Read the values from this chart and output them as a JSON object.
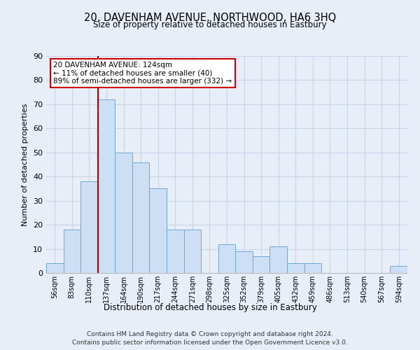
{
  "title": "20, DAVENHAM AVENUE, NORTHWOOD, HA6 3HQ",
  "subtitle": "Size of property relative to detached houses in Eastbury",
  "xlabel": "Distribution of detached houses by size in Eastbury",
  "ylabel": "Number of detached properties",
  "bar_labels": [
    "56sqm",
    "83sqm",
    "110sqm",
    "137sqm",
    "164sqm",
    "190sqm",
    "217sqm",
    "244sqm",
    "271sqm",
    "298sqm",
    "325sqm",
    "352sqm",
    "379sqm",
    "405sqm",
    "432sqm",
    "459sqm",
    "486sqm",
    "513sqm",
    "540sqm",
    "567sqm",
    "594sqm"
  ],
  "bar_values": [
    4,
    18,
    38,
    72,
    50,
    46,
    35,
    18,
    18,
    0,
    12,
    9,
    7,
    11,
    4,
    4,
    0,
    0,
    0,
    0,
    3
  ],
  "bar_color": "#ccdff5",
  "bar_edge_color": "#6aaad4",
  "vline_color": "#aa0000",
  "vline_x_index": 2.5,
  "annotation_line1": "20 DAVENHAM AVENUE: 124sqm",
  "annotation_line2": "← 11% of detached houses are smaller (40)",
  "annotation_line3": "89% of semi-detached houses are larger (332) →",
  "annotation_box_facecolor": "#ffffff",
  "annotation_box_edgecolor": "#cc0000",
  "ylim": [
    0,
    90
  ],
  "yticks": [
    0,
    10,
    20,
    30,
    40,
    50,
    60,
    70,
    80,
    90
  ],
  "grid_color": "#c8d4e8",
  "bg_color": "#e8eef8",
  "footer_line1": "Contains HM Land Registry data © Crown copyright and database right 2024.",
  "footer_line2": "Contains public sector information licensed under the Open Government Licence v3.0."
}
